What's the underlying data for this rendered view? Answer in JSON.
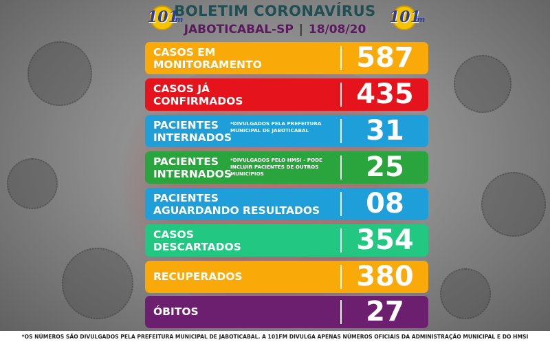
{
  "header": {
    "title": "BOLETIM CORONAVÍRUS",
    "city": "JABOTICABAL-SP",
    "separator": "|",
    "date": "18/08/20",
    "logo_text": "101",
    "logo_suffix": "fm"
  },
  "rows": [
    {
      "line1": "CASOS EM",
      "line2": "MONITORAMENTO",
      "note": "",
      "value": "587",
      "color": "#f9a908"
    },
    {
      "line1": "CASOS JÁ",
      "line2": "CONFIRMADOS",
      "note": "",
      "value": "435",
      "color": "#e5131b"
    },
    {
      "line1": "PACIENTES",
      "line2": "INTERNADOS",
      "note": "*DIVULGADOS PELA PREFEITURA MUNICIPAL DE JABOTICABAL",
      "value": "31",
      "color": "#1e9fd9"
    },
    {
      "line1": "PACIENTES",
      "line2": "INTERNADOS",
      "note": "*DIVULGADOS PELO HMSI - PODE INCLUIR PACIENTES DE OUTROS MUNICÍPIOS",
      "value": "25",
      "color": "#2aa43c"
    },
    {
      "line1": "PACIENTES",
      "line2": "AGUARDANDO RESULTADOS",
      "note": "",
      "value": "08",
      "color": "#1e9fd9"
    },
    {
      "line1": "CASOS",
      "line2": "DESCARTADOS",
      "note": "",
      "value": "354",
      "color": "#22c782"
    },
    {
      "line1": "RECUPERADOS",
      "line2": "",
      "note": "",
      "value": "380",
      "color": "#f9a908"
    },
    {
      "line1": "ÓBITOS",
      "line2": "",
      "note": "",
      "value": "27",
      "color": "#6c1f6e"
    }
  ],
  "footer": "*OS NÚMEROS SÃO DIVULGADOS PELA PREFEITURA MUNICIPAL DE JABOTICABAL. A 101FM DIVULGA APENAS NÚMEROS OFICIAIS DA ADMINISTRAÇÃO MUNICIPAL E DO HMSI"
}
